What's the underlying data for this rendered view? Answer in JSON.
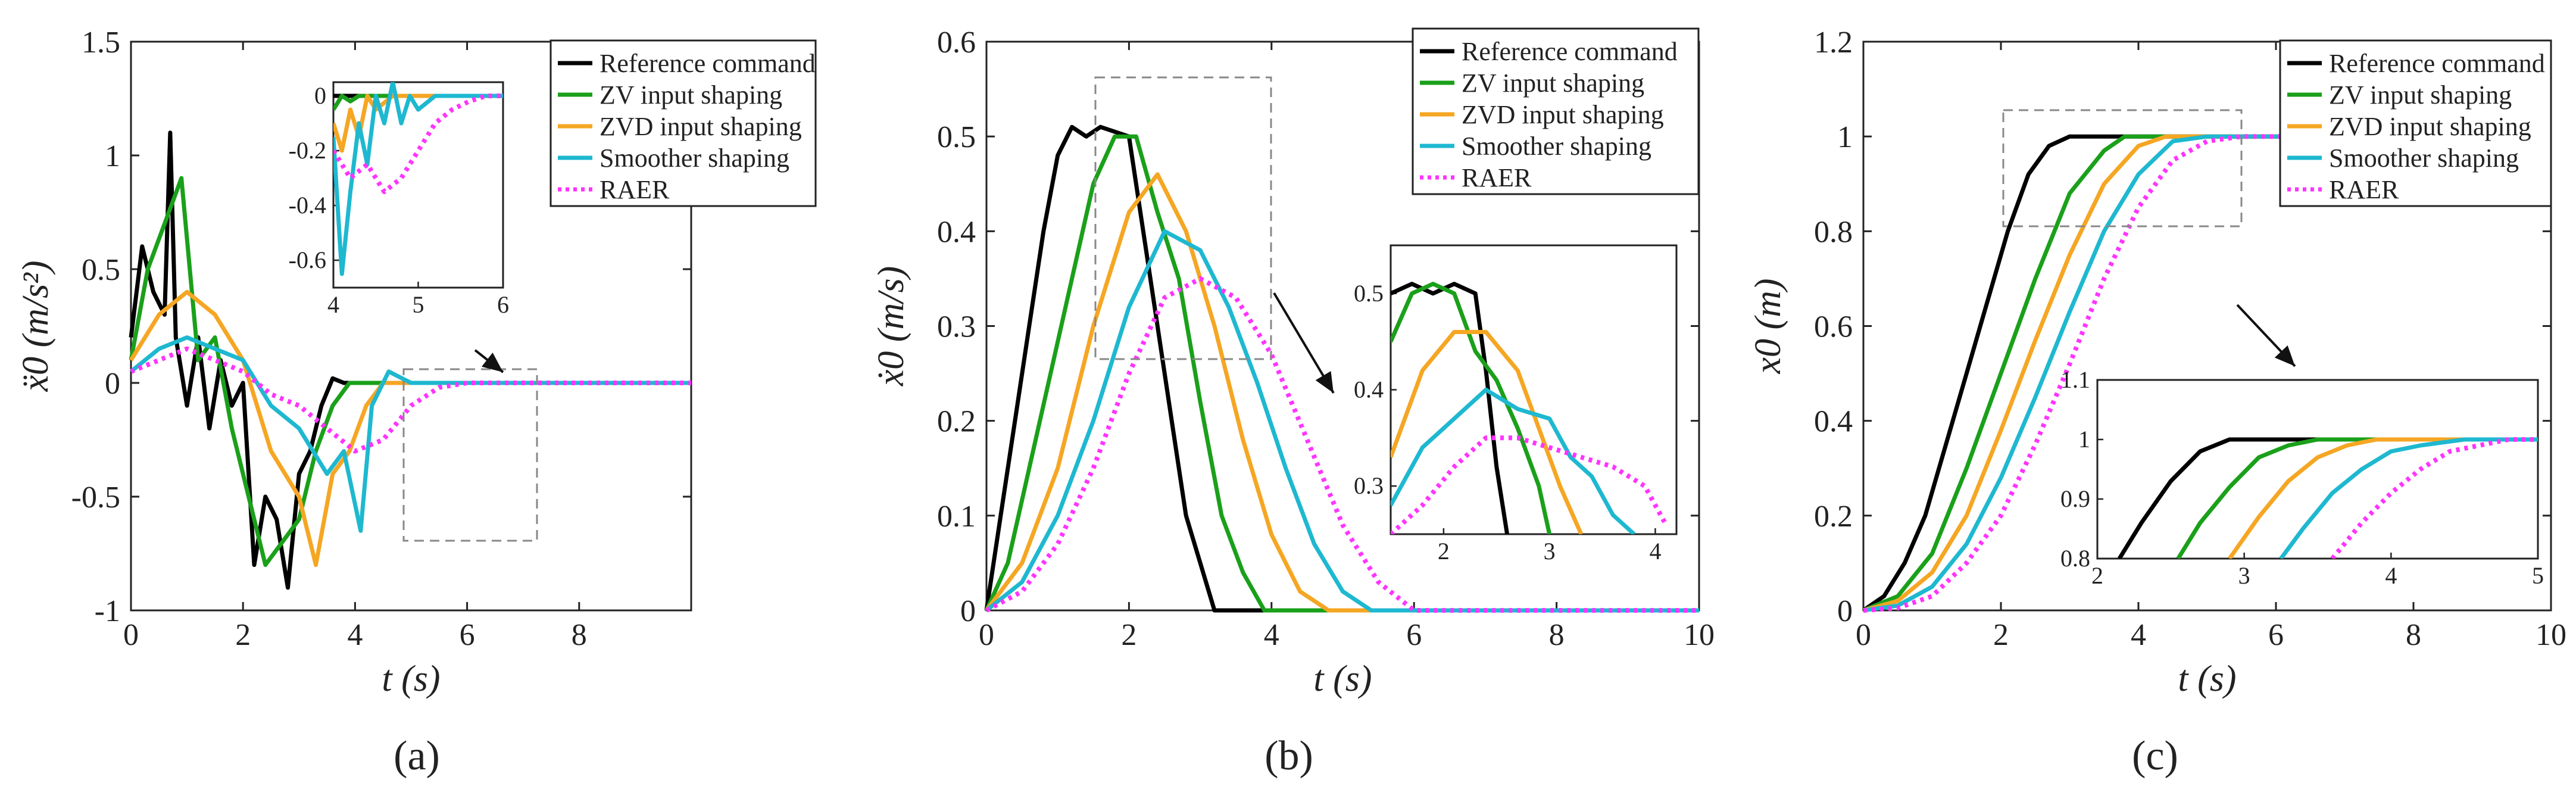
{
  "figure": {
    "panel_labels": [
      "(a)",
      "(b)",
      "(c)"
    ],
    "legend_entries": [
      "Reference command",
      "ZV input shaping",
      "ZVD input shaping",
      "Smoother shaping",
      "RAER"
    ],
    "series_colors": [
      "#000000",
      "#1aa01a",
      "#f5a623",
      "#1eb8d0",
      "#ff33ff"
    ]
  },
  "chart_data": [
    {
      "type": "line",
      "panel": "(a)",
      "title": "",
      "xlabel": "t (s)",
      "ylabel": "ẍ0 (m/s²)",
      "xlim": [
        0,
        10
      ],
      "ylim": [
        -1,
        1.5
      ],
      "xticks": [
        0,
        2,
        4,
        6,
        8
      ],
      "yticks": [
        -1,
        -0.5,
        0,
        0.5,
        1,
        1.5
      ],
      "legend": "top-right",
      "series": [
        {
          "name": "Reference command",
          "color": "#000000",
          "style": "solid",
          "x": [
            0,
            0.2,
            0.4,
            0.6,
            0.7,
            0.8,
            1.0,
            1.2,
            1.4,
            1.6,
            1.8,
            2.0,
            2.2,
            2.4,
            2.6,
            2.8,
            3.0,
            3.2,
            3.4,
            3.6,
            3.8,
            4.0,
            10
          ],
          "y": [
            0.2,
            0.6,
            0.4,
            0.3,
            1.1,
            0.2,
            -0.1,
            0.2,
            -0.2,
            0.1,
            -0.1,
            0.0,
            -0.8,
            -0.5,
            -0.6,
            -0.9,
            -0.4,
            -0.3,
            -0.1,
            0.02,
            0.0,
            0.0,
            0.0
          ]
        },
        {
          "name": "ZV input shaping",
          "color": "#1aa01a",
          "style": "solid",
          "x": [
            0,
            0.3,
            0.6,
            0.9,
            1.2,
            1.5,
            1.8,
            2.1,
            2.4,
            2.7,
            3.0,
            3.3,
            3.6,
            3.9,
            4.2,
            10
          ],
          "y": [
            0.1,
            0.5,
            0.7,
            0.9,
            0.1,
            0.2,
            -0.2,
            -0.5,
            -0.8,
            -0.7,
            -0.6,
            -0.3,
            -0.1,
            0.0,
            0.0,
            0.0
          ]
        },
        {
          "name": "ZVD input shaping",
          "color": "#f5a623",
          "style": "solid",
          "x": [
            0,
            0.5,
            1.0,
            1.5,
            2.0,
            2.5,
            3.0,
            3.3,
            3.6,
            3.9,
            4.2,
            4.5,
            4.8,
            10
          ],
          "y": [
            0.1,
            0.3,
            0.4,
            0.3,
            0.1,
            -0.3,
            -0.5,
            -0.8,
            -0.4,
            -0.3,
            -0.1,
            0.0,
            0.0,
            0.0
          ]
        },
        {
          "name": "Smoother shaping",
          "color": "#1eb8d0",
          "style": "solid",
          "x": [
            0,
            0.5,
            1.0,
            1.5,
            2.0,
            2.5,
            3.0,
            3.5,
            3.8,
            4.1,
            4.3,
            4.6,
            5.0,
            5.5,
            10
          ],
          "y": [
            0.05,
            0.15,
            0.2,
            0.15,
            0.1,
            -0.1,
            -0.2,
            -0.4,
            -0.3,
            -0.65,
            -0.1,
            0.05,
            0.0,
            0.0,
            0.0
          ]
        },
        {
          "name": "RAER",
          "color": "#ff33ff",
          "style": "dotted",
          "x": [
            0,
            0.5,
            1.0,
            1.5,
            2.0,
            2.5,
            3.0,
            3.5,
            4.0,
            4.5,
            5.0,
            5.5,
            6.0,
            10
          ],
          "y": [
            0.05,
            0.1,
            0.15,
            0.1,
            0.05,
            -0.05,
            -0.1,
            -0.2,
            -0.3,
            -0.25,
            -0.1,
            -0.02,
            0.0,
            0.0
          ]
        }
      ],
      "inset": {
        "xlim": [
          4,
          6
        ],
        "ylim": [
          -0.7,
          0.05
        ],
        "xticks": [
          4,
          5,
          6
        ],
        "yticks": [
          0,
          -0.2,
          -0.4,
          -0.6
        ],
        "series": [
          {
            "name": "Reference command",
            "x": [
              4.0,
              6.0
            ],
            "y": [
              0.0,
              0.0
            ]
          },
          {
            "name": "ZV input shaping",
            "x": [
              4.0,
              4.1,
              4.2,
              4.3,
              6.0
            ],
            "y": [
              -0.05,
              0.0,
              -0.02,
              0.0,
              0.0
            ]
          },
          {
            "name": "ZVD input shaping",
            "x": [
              4.0,
              4.1,
              4.2,
              4.3,
              4.4,
              4.5,
              4.7,
              6.0
            ],
            "y": [
              -0.1,
              -0.2,
              -0.05,
              -0.15,
              0.0,
              -0.05,
              0.0,
              0.0
            ]
          },
          {
            "name": "Smoother shaping",
            "x": [
              4.0,
              4.05,
              4.1,
              4.2,
              4.3,
              4.4,
              4.5,
              4.6,
              4.7,
              4.8,
              4.9,
              5.0,
              5.2,
              5.4,
              6.0
            ],
            "y": [
              -0.15,
              -0.4,
              -0.65,
              -0.35,
              -0.1,
              -0.25,
              0.0,
              -0.1,
              0.05,
              -0.1,
              0.0,
              -0.05,
              0.0,
              0.0,
              0.0
            ]
          },
          {
            "name": "RAER",
            "x": [
              4.0,
              4.2,
              4.4,
              4.6,
              4.8,
              5.0,
              5.2,
              5.4,
              5.6,
              5.8,
              6.0
            ],
            "y": [
              -0.2,
              -0.3,
              -0.25,
              -0.35,
              -0.3,
              -0.2,
              -0.1,
              -0.05,
              -0.02,
              0.0,
              0.0
            ]
          }
        ]
      }
    },
    {
      "type": "line",
      "panel": "(b)",
      "title": "",
      "xlabel": "t (s)",
      "ylabel": "ẋ0 (m/s)",
      "xlim": [
        0,
        10
      ],
      "ylim": [
        0,
        0.6
      ],
      "xticks": [
        0,
        2,
        4,
        6,
        8,
        10
      ],
      "yticks": [
        0,
        0.1,
        0.2,
        0.3,
        0.4,
        0.5,
        0.6
      ],
      "legend": "top-right",
      "series": [
        {
          "name": "Reference command",
          "color": "#000000",
          "style": "solid",
          "x": [
            0,
            0.2,
            0.4,
            0.6,
            0.8,
            1.0,
            1.2,
            1.4,
            1.6,
            2.0,
            2.4,
            2.6,
            2.8,
            3.0,
            3.2,
            10
          ],
          "y": [
            0,
            0.1,
            0.2,
            0.3,
            0.4,
            0.48,
            0.51,
            0.5,
            0.51,
            0.5,
            0.3,
            0.2,
            0.1,
            0.05,
            0.0,
            0.0
          ]
        },
        {
          "name": "ZV input shaping",
          "color": "#1aa01a",
          "style": "solid",
          "x": [
            0,
            0.3,
            0.6,
            0.9,
            1.2,
            1.5,
            1.8,
            2.1,
            2.4,
            2.7,
            3.0,
            3.3,
            3.6,
            3.9,
            10
          ],
          "y": [
            0,
            0.05,
            0.15,
            0.25,
            0.35,
            0.45,
            0.5,
            0.5,
            0.42,
            0.35,
            0.22,
            0.1,
            0.04,
            0.0,
            0.0
          ]
        },
        {
          "name": "ZVD input shaping",
          "color": "#f5a623",
          "style": "solid",
          "x": [
            0,
            0.5,
            1.0,
            1.5,
            2.0,
            2.4,
            2.8,
            3.2,
            3.6,
            4.0,
            4.4,
            4.8,
            10
          ],
          "y": [
            0,
            0.05,
            0.15,
            0.3,
            0.42,
            0.46,
            0.4,
            0.3,
            0.18,
            0.08,
            0.02,
            0.0,
            0.0
          ]
        },
        {
          "name": "Smoother shaping",
          "color": "#1eb8d0",
          "style": "solid",
          "x": [
            0,
            0.5,
            1.0,
            1.5,
            2.0,
            2.5,
            3.0,
            3.4,
            3.8,
            4.2,
            4.6,
            5.0,
            5.4,
            10
          ],
          "y": [
            0,
            0.03,
            0.1,
            0.2,
            0.32,
            0.4,
            0.38,
            0.32,
            0.24,
            0.15,
            0.07,
            0.02,
            0.0,
            0.0
          ]
        },
        {
          "name": "RAER",
          "color": "#ff33ff",
          "style": "dotted",
          "x": [
            0,
            0.5,
            1.0,
            1.5,
            2.0,
            2.5,
            3.0,
            3.5,
            4.0,
            4.5,
            5.0,
            5.5,
            6.0,
            10
          ],
          "y": [
            0,
            0.02,
            0.07,
            0.15,
            0.25,
            0.33,
            0.35,
            0.33,
            0.27,
            0.18,
            0.09,
            0.03,
            0.0,
            0.0
          ]
        }
      ],
      "inset": {
        "xlim": [
          1.5,
          4.2
        ],
        "ylim": [
          0.25,
          0.55
        ],
        "xticks": [
          2,
          3,
          4
        ],
        "yticks": [
          0.3,
          0.4,
          0.5
        ],
        "series": [
          {
            "name": "Reference command",
            "x": [
              1.5,
              1.7,
              1.9,
              2.1,
              2.3,
              2.4,
              2.5,
              2.6
            ],
            "y": [
              0.5,
              0.51,
              0.5,
              0.51,
              0.5,
              0.42,
              0.32,
              0.25
            ]
          },
          {
            "name": "ZV input shaping",
            "x": [
              1.5,
              1.7,
              1.9,
              2.1,
              2.3,
              2.5,
              2.7,
              2.9,
              3.0
            ],
            "y": [
              0.45,
              0.5,
              0.51,
              0.5,
              0.44,
              0.41,
              0.36,
              0.3,
              0.25
            ]
          },
          {
            "name": "ZVD input shaping",
            "x": [
              1.5,
              1.8,
              2.1,
              2.4,
              2.7,
              2.9,
              3.1,
              3.3
            ],
            "y": [
              0.33,
              0.42,
              0.46,
              0.46,
              0.42,
              0.36,
              0.3,
              0.25
            ]
          },
          {
            "name": "Smoother shaping",
            "x": [
              1.5,
              1.8,
              2.1,
              2.4,
              2.7,
              3.0,
              3.2,
              3.4,
              3.6,
              3.8
            ],
            "y": [
              0.28,
              0.34,
              0.37,
              0.4,
              0.38,
              0.37,
              0.33,
              0.31,
              0.27,
              0.25
            ]
          },
          {
            "name": "RAER",
            "x": [
              1.5,
              1.8,
              2.1,
              2.4,
              2.7,
              3.0,
              3.3,
              3.6,
              3.9,
              4.1
            ],
            "y": [
              0.25,
              0.28,
              0.32,
              0.35,
              0.35,
              0.34,
              0.33,
              0.32,
              0.3,
              0.26
            ]
          }
        ]
      }
    },
    {
      "type": "line",
      "panel": "(c)",
      "title": "",
      "xlabel": "t (s)",
      "ylabel": "x0 (m)",
      "xlim": [
        0,
        10
      ],
      "ylim": [
        0,
        1.2
      ],
      "xticks": [
        0,
        2,
        4,
        6,
        8,
        10
      ],
      "yticks": [
        0,
        0.2,
        0.4,
        0.6,
        0.8,
        1,
        1.2
      ],
      "legend": "top-right",
      "series": [
        {
          "name": "Reference command",
          "color": "#000000",
          "style": "solid",
          "x": [
            0,
            0.3,
            0.6,
            0.9,
            1.2,
            1.5,
            1.8,
            2.1,
            2.4,
            2.7,
            3.0,
            3.2,
            10
          ],
          "y": [
            0,
            0.03,
            0.1,
            0.2,
            0.35,
            0.5,
            0.65,
            0.8,
            0.92,
            0.98,
            1.0,
            1.0,
            1.0
          ]
        },
        {
          "name": "ZV input shaping",
          "color": "#1aa01a",
          "style": "solid",
          "x": [
            0,
            0.5,
            1.0,
            1.5,
            2.0,
            2.5,
            3.0,
            3.5,
            3.8,
            10
          ],
          "y": [
            0,
            0.03,
            0.12,
            0.3,
            0.5,
            0.7,
            0.88,
            0.97,
            1.0,
            1.0
          ]
        },
        {
          "name": "ZVD input shaping",
          "color": "#f5a623",
          "style": "solid",
          "x": [
            0,
            0.5,
            1.0,
            1.5,
            2.0,
            2.5,
            3.0,
            3.5,
            4.0,
            4.4,
            10
          ],
          "y": [
            0,
            0.02,
            0.08,
            0.2,
            0.38,
            0.57,
            0.75,
            0.9,
            0.98,
            1.0,
            1.0
          ]
        },
        {
          "name": "Smoother shaping",
          "color": "#1eb8d0",
          "style": "solid",
          "x": [
            0,
            0.5,
            1.0,
            1.5,
            2.0,
            2.5,
            3.0,
            3.5,
            4.0,
            4.5,
            5.0,
            10
          ],
          "y": [
            0,
            0.01,
            0.05,
            0.14,
            0.28,
            0.45,
            0.63,
            0.8,
            0.92,
            0.99,
            1.0,
            1.0
          ]
        },
        {
          "name": "RAER",
          "color": "#ff33ff",
          "style": "dotted",
          "x": [
            0,
            0.5,
            1.0,
            1.5,
            2.0,
            2.5,
            3.0,
            3.5,
            4.0,
            4.5,
            5.0,
            5.5,
            10
          ],
          "y": [
            0,
            0.005,
            0.03,
            0.1,
            0.2,
            0.35,
            0.52,
            0.7,
            0.85,
            0.95,
            0.99,
            1.0,
            1.0
          ]
        }
      ],
      "inset": {
        "xlim": [
          2,
          5
        ],
        "ylim": [
          0.8,
          1.1
        ],
        "xticks": [
          2,
          3,
          4,
          5
        ],
        "yticks": [
          0.8,
          0.9,
          1,
          1.1
        ],
        "series": [
          {
            "name": "Reference command",
            "x": [
              2.15,
              2.3,
              2.5,
              2.7,
              2.9,
              3.0,
              5.0
            ],
            "y": [
              0.8,
              0.86,
              0.93,
              0.98,
              1.0,
              1.0,
              1.0
            ]
          },
          {
            "name": "ZV input shaping",
            "x": [
              2.55,
              2.7,
              2.9,
              3.1,
              3.3,
              3.5,
              5.0
            ],
            "y": [
              0.8,
              0.86,
              0.92,
              0.97,
              0.99,
              1.0,
              1.0
            ]
          },
          {
            "name": "ZVD input shaping",
            "x": [
              2.9,
              3.1,
              3.3,
              3.5,
              3.7,
              3.9,
              4.1,
              5.0
            ],
            "y": [
              0.8,
              0.87,
              0.93,
              0.97,
              0.99,
              1.0,
              1.0,
              1.0
            ]
          },
          {
            "name": "Smoother shaping",
            "x": [
              3.25,
              3.4,
              3.6,
              3.8,
              4.0,
              4.2,
              4.5,
              5.0
            ],
            "y": [
              0.8,
              0.85,
              0.91,
              0.95,
              0.98,
              0.99,
              1.0,
              1.0
            ]
          },
          {
            "name": "RAER",
            "x": [
              3.6,
              3.8,
              4.0,
              4.2,
              4.4,
              4.6,
              4.8,
              5.0
            ],
            "y": [
              0.8,
              0.86,
              0.91,
              0.95,
              0.98,
              0.99,
              1.0,
              1.0
            ]
          }
        ]
      }
    }
  ]
}
